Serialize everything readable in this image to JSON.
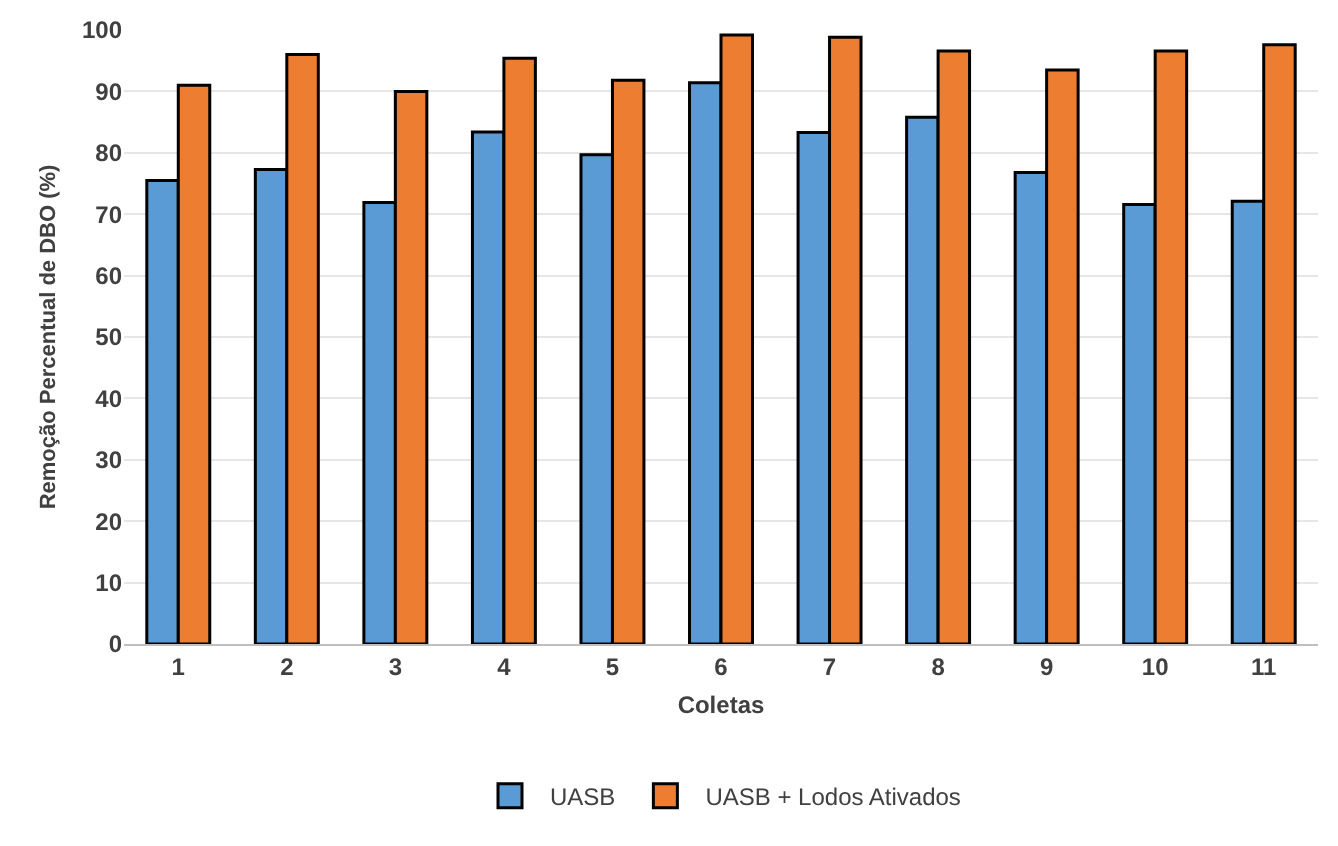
{
  "chart_data": {
    "type": "bar",
    "xlabel": "Coletas",
    "ylabel": "Remoção Percentual de DBO (%)",
    "categories": [
      "1",
      "2",
      "3",
      "4",
      "5",
      "6",
      "7",
      "8",
      "9",
      "10",
      "11"
    ],
    "series": [
      {
        "name": "UASB",
        "color": "#5b9bd5",
        "values": [
          75.5,
          77.3,
          71.9,
          83.4,
          79.7,
          91.4,
          83.3,
          85.8,
          76.8,
          71.6,
          72.1
        ]
      },
      {
        "name": "UASB + Lodos Ativados",
        "color": "#ed7d31",
        "values": [
          91.0,
          96.0,
          90.0,
          95.4,
          91.8,
          99.2,
          98.8,
          96.6,
          93.5,
          96.6,
          97.6
        ]
      }
    ],
    "ylim": [
      0,
      100
    ],
    "yticks": [
      0,
      10,
      20,
      30,
      40,
      50,
      60,
      70,
      80,
      90,
      100
    ],
    "grid": "y",
    "legend": "bottom"
  }
}
